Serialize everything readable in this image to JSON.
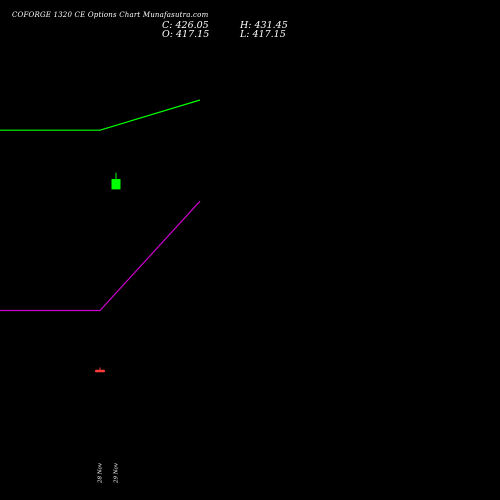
{
  "header": {
    "title": "COFORGE 1320 CE Options Chart Munafasutra.com",
    "close_text": "C: 426.05",
    "open_text": "O: 417.15",
    "high_text": "H: 431.45",
    "low_text": "L: 417.15"
  },
  "chart_data": {
    "type": "candlestick",
    "title": "COFORGE 1320 CE Options Chart Munafasutra.com",
    "x_labels": [
      "28 Nov",
      "29 Nov"
    ],
    "candles": [
      {
        "label": "28 Nov",
        "open": 262,
        "high": 264,
        "low": 261,
        "close": 261
      },
      {
        "label": "29 Nov",
        "open": 417.15,
        "high": 431.45,
        "low": 417.15,
        "close": 426.05
      }
    ],
    "lines": [
      {
        "color": "#00ff00",
        "values_by_x": [
          [
            "start",
            468
          ],
          [
            "28 Nov",
            468
          ],
          [
            "end",
            494
          ]
        ]
      },
      {
        "color": "#cc00cc",
        "values_by_x": [
          [
            "start",
            313
          ],
          [
            "28 Nov",
            313
          ],
          [
            "end",
            407
          ]
        ]
      }
    ],
    "y_range": [
      150,
      580
    ],
    "grid": false,
    "legend": "none",
    "colors": {
      "up": "#00ff00",
      "down": "#ff3b3b",
      "background": "#000000",
      "text": "#ffffff"
    }
  }
}
